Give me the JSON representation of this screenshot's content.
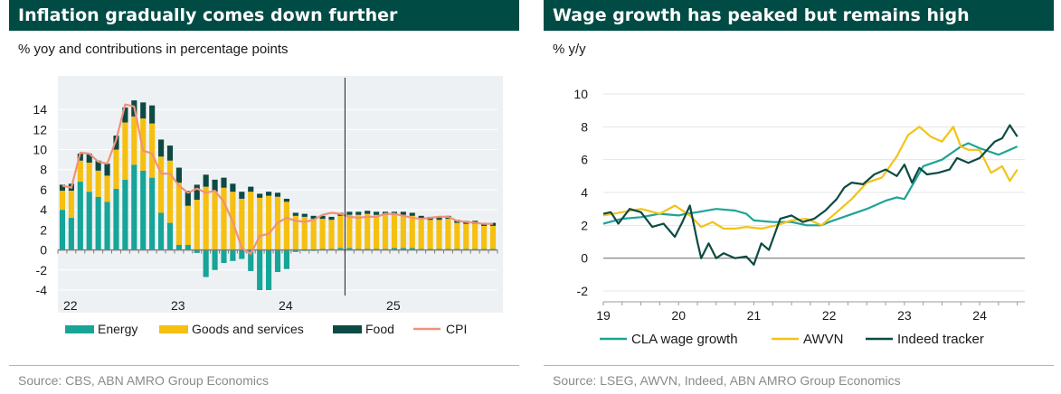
{
  "left": {
    "title": "Inflation gradually comes down further",
    "subtitle": "% yoy and contributions in percentage points",
    "source": "Source: CBS, ABN AMRO Group Economics"
  },
  "right": {
    "title": "Wage growth has peaked but remains high",
    "subtitle": "% y/y",
    "source": "Source: LSEG, AWVN, Indeed, ABN AMRO Group Economics"
  },
  "chart_data": [
    {
      "type": "bar",
      "stacked": true,
      "title": "Inflation gradually comes down further",
      "ylabel": "% yoy and contributions in percentage points",
      "ylim": [
        -4,
        15
      ],
      "yticks": [
        -4,
        -2,
        0,
        2,
        4,
        6,
        8,
        10,
        12,
        14
      ],
      "xtick_labels": [
        "22",
        "23",
        "24",
        "25"
      ],
      "grid": true,
      "legend": "bottom",
      "vertical_marker_index": 32,
      "series": [
        {
          "name": "Energy",
          "color": "#16a598",
          "kind": "bar",
          "values": [
            4.0,
            3.2,
            6.8,
            5.8,
            5.3,
            4.8,
            6.1,
            7.0,
            8.5,
            7.9,
            7.2,
            3.7,
            2.7,
            0.5,
            0.5,
            -0.3,
            -2.7,
            -2.0,
            -1.3,
            -1.1,
            -0.9,
            -2.1,
            -4.0,
            -4.0,
            -2.2,
            -1.9,
            -0.2,
            -0.1,
            -0.1,
            0.1,
            0.1,
            0.2,
            0.2,
            0.1,
            0.1,
            0.1,
            0.1,
            0.2,
            0.2,
            0.2,
            0.1,
            0.1,
            0.1,
            0.1,
            0.1,
            0.1,
            0.1,
            0.1,
            0.1
          ]
        },
        {
          "name": "Goods and services",
          "color": "#f5c010",
          "kind": "bar",
          "values": [
            1.9,
            2.7,
            2.1,
            2.9,
            2.6,
            2.6,
            3.9,
            5.7,
            4.8,
            5.2,
            5.4,
            5.6,
            6.2,
            6.2,
            3.9,
            5.0,
            6.3,
            5.8,
            6.2,
            5.8,
            5.1,
            5.8,
            5.2,
            5.4,
            5.3,
            4.8,
            3.4,
            3.3,
            3.1,
            3.0,
            2.9,
            3.2,
            3.3,
            3.4,
            3.5,
            3.4,
            3.4,
            3.3,
            3.3,
            3.2,
            3.0,
            2.9,
            2.9,
            3.0,
            2.6,
            2.5,
            2.5,
            2.3,
            2.3
          ]
        },
        {
          "name": "Food",
          "color": "#0d4a44",
          "kind": "bar",
          "values": [
            0.6,
            0.7,
            0.7,
            0.9,
            1.0,
            1.2,
            1.4,
            1.5,
            1.6,
            1.6,
            1.8,
            1.7,
            1.5,
            1.5,
            1.5,
            1.5,
            1.2,
            1.2,
            1.0,
            0.8,
            0.7,
            0.5,
            0.4,
            0.4,
            0.4,
            0.3,
            0.3,
            0.3,
            0.3,
            0.3,
            0.3,
            0.3,
            0.3,
            0.3,
            0.3,
            0.3,
            0.3,
            0.3,
            0.3,
            0.3,
            0.3,
            0.3,
            0.3,
            0.3,
            0.3,
            0.3,
            0.3,
            0.3,
            0.3
          ]
        },
        {
          "name": "CPI",
          "color": "#f0927a",
          "kind": "line",
          "values": [
            6.4,
            6.2,
            9.7,
            9.6,
            8.8,
            8.6,
            11.0,
            14.5,
            14.3,
            9.9,
            9.6,
            7.6,
            7.6,
            6.4,
            5.7,
            6.1,
            5.7,
            5.9,
            4.8,
            2.8,
            0.2,
            -0.4,
            1.4,
            1.6,
            2.7,
            3.2,
            2.9,
            2.8,
            3.0,
            3.5,
            3.7,
            3.6,
            3.3,
            3.2,
            3.3,
            3.3,
            3.6,
            3.6,
            3.4,
            3.2,
            3.1,
            3.2,
            3.3,
            3.3,
            2.9,
            2.8,
            2.7,
            2.6,
            2.6
          ]
        }
      ]
    },
    {
      "type": "line",
      "title": "Wage growth has peaked but remains high",
      "ylabel": "% y/y",
      "ylim": [
        -2,
        10
      ],
      "yticks": [
        -2,
        0,
        2,
        4,
        6,
        8,
        10
      ],
      "x_range": [
        2019,
        2024.6
      ],
      "xtick_values": [
        2019,
        2020,
        2021,
        2022,
        2023,
        2024
      ],
      "xtick_labels": [
        "19",
        "20",
        "21",
        "22",
        "23",
        "24"
      ],
      "grid": true,
      "legend": "bottom",
      "series": [
        {
          "name": "CLA wage growth",
          "color": "#1fa398",
          "x": [
            2019,
            2019.25,
            2019.5,
            2019.75,
            2020,
            2020.1,
            2020.25,
            2020.5,
            2020.75,
            2020.9,
            2021,
            2021.25,
            2021.5,
            2021.7,
            2021.9,
            2022,
            2022.25,
            2022.5,
            2022.75,
            2022.9,
            2023,
            2023.25,
            2023.5,
            2023.75,
            2023.85,
            2024,
            2024.25,
            2024.5
          ],
          "y": [
            2.1,
            2.4,
            2.5,
            2.7,
            2.6,
            2.7,
            2.8,
            3.0,
            2.9,
            2.7,
            2.3,
            2.2,
            2.2,
            2.0,
            2.0,
            2.2,
            2.6,
            3.0,
            3.5,
            3.7,
            3.6,
            5.6,
            6.0,
            6.8,
            7.0,
            6.7,
            6.3,
            6.8
          ]
        },
        {
          "name": "AWVN",
          "color": "#f2c318",
          "x": [
            2019,
            2019.25,
            2019.5,
            2019.75,
            2019.95,
            2020.15,
            2020.3,
            2020.45,
            2020.6,
            2020.75,
            2020.9,
            2021.1,
            2021.3,
            2021.5,
            2021.7,
            2021.9,
            2022.1,
            2022.3,
            2022.5,
            2022.7,
            2022.9,
            2023.05,
            2023.2,
            2023.35,
            2023.5,
            2023.65,
            2023.75,
            2023.85,
            2024,
            2024.15,
            2024.3,
            2024.4,
            2024.5
          ],
          "y": [
            2.6,
            2.8,
            3.0,
            2.7,
            3.2,
            2.6,
            1.9,
            2.2,
            1.8,
            1.8,
            1.9,
            1.8,
            2.0,
            2.3,
            2.4,
            2.0,
            2.8,
            3.6,
            4.6,
            4.9,
            6.2,
            7.5,
            8.0,
            7.4,
            7.1,
            8.0,
            6.8,
            6.6,
            6.6,
            5.2,
            5.6,
            4.7,
            5.4
          ]
        },
        {
          "name": "Indeed tracker",
          "color": "#0d4a44",
          "x": [
            2019,
            2019.1,
            2019.2,
            2019.35,
            2019.5,
            2019.65,
            2019.8,
            2019.95,
            2020.05,
            2020.15,
            2020.25,
            2020.3,
            2020.4,
            2020.5,
            2020.6,
            2020.75,
            2020.9,
            2021,
            2021.1,
            2021.2,
            2021.35,
            2021.5,
            2021.65,
            2021.8,
            2021.95,
            2022.1,
            2022.2,
            2022.3,
            2022.45,
            2022.6,
            2022.75,
            2022.9,
            2023,
            2023.1,
            2023.2,
            2023.3,
            2023.45,
            2023.6,
            2023.7,
            2023.85,
            2024,
            2024.1,
            2024.2,
            2024.3,
            2024.4,
            2024.5
          ],
          "y": [
            2.7,
            2.8,
            2.1,
            3.0,
            2.8,
            1.9,
            2.1,
            1.3,
            2.2,
            3.2,
            1.0,
            0.0,
            0.9,
            0.0,
            0.3,
            0.0,
            0.1,
            -0.4,
            0.9,
            0.5,
            2.4,
            2.6,
            2.2,
            2.4,
            2.9,
            3.6,
            4.3,
            4.6,
            4.5,
            5.1,
            5.4,
            5.0,
            5.7,
            4.6,
            5.5,
            5.1,
            5.2,
            5.4,
            6.1,
            5.8,
            6.1,
            6.6,
            7.1,
            7.3,
            8.1,
            7.4
          ]
        }
      ]
    }
  ]
}
